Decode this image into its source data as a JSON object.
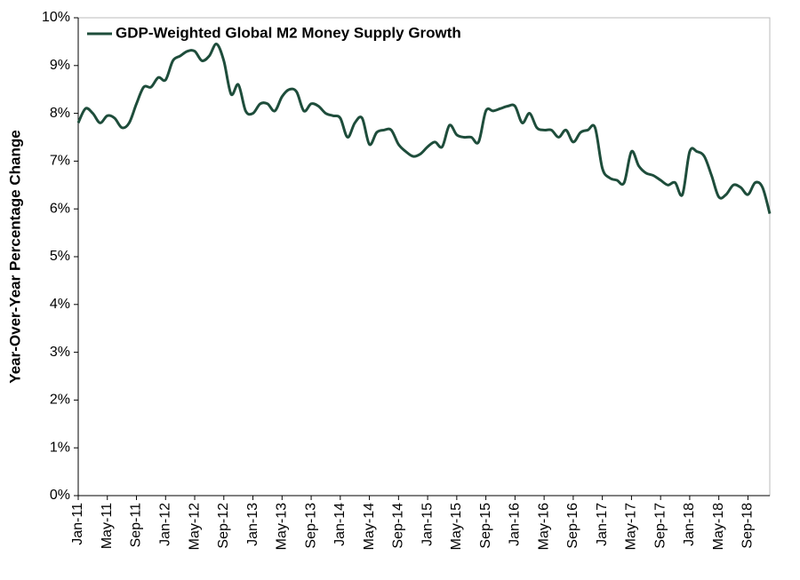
{
  "chart_data": {
    "type": "line",
    "y_label": "Year-Over-Year Percentage Change",
    "categories": [
      "Jan-11",
      null,
      null,
      null,
      "May-11",
      null,
      null,
      null,
      "Sep-11",
      null,
      null,
      null,
      "Jan-12",
      null,
      null,
      null,
      "May-12",
      null,
      null,
      null,
      "Sep-12",
      null,
      null,
      null,
      "Jan-13",
      null,
      null,
      null,
      "May-13",
      null,
      null,
      null,
      "Sep-13",
      null,
      null,
      null,
      "Jan-14",
      null,
      null,
      null,
      "May-14",
      null,
      null,
      null,
      "Sep-14",
      null,
      null,
      null,
      "Jan-15",
      null,
      null,
      null,
      "May-15",
      null,
      null,
      null,
      "Sep-15",
      null,
      null,
      null,
      "Jan-16",
      null,
      null,
      null,
      "May-16",
      null,
      null,
      null,
      "Sep-16",
      null,
      null,
      null,
      "Jan-17",
      null,
      null,
      null,
      "May-17",
      null,
      null,
      null,
      "Sep-17",
      null,
      null,
      null,
      "Jan-18",
      null,
      null,
      null,
      "May-18",
      null,
      null,
      null,
      "Sep-18",
      null,
      null,
      null
    ],
    "series": [
      {
        "name": "GDP-Weighted Global M2 Money Supply Growth",
        "color": "#1e4d3b",
        "values": [
          7.8,
          8.1,
          8.0,
          7.8,
          7.95,
          7.9,
          7.7,
          7.8,
          8.2,
          8.55,
          8.55,
          8.75,
          8.7,
          9.1,
          9.2,
          9.3,
          9.3,
          9.1,
          9.2,
          9.45,
          9.1,
          8.4,
          8.6,
          8.05,
          8.0,
          8.2,
          8.2,
          8.05,
          8.35,
          8.5,
          8.45,
          8.05,
          8.2,
          8.15,
          8.0,
          7.95,
          7.9,
          7.5,
          7.8,
          7.9,
          7.35,
          7.6,
          7.65,
          7.65,
          7.35,
          7.2,
          7.1,
          7.15,
          7.3,
          7.4,
          7.3,
          7.75,
          7.55,
          7.5,
          7.5,
          7.4,
          8.05,
          8.05,
          8.1,
          8.15,
          8.15,
          7.8,
          8.0,
          7.7,
          7.65,
          7.65,
          7.5,
          7.65,
          7.4,
          7.6,
          7.65,
          7.7,
          6.85,
          6.65,
          6.6,
          6.55,
          7.2,
          6.9,
          6.75,
          6.7,
          6.6,
          6.5,
          6.55,
          6.3,
          7.2,
          7.2,
          7.1,
          6.7,
          6.25,
          6.3,
          6.5,
          6.45,
          6.3,
          6.55,
          6.45,
          5.9
        ]
      }
    ],
    "ylim": [
      0,
      10
    ],
    "yticks": [
      {
        "value": 0,
        "label": "0%"
      },
      {
        "value": 1,
        "label": "1%"
      },
      {
        "value": 2,
        "label": "2%"
      },
      {
        "value": 3,
        "label": "3%"
      },
      {
        "value": 4,
        "label": "4%"
      },
      {
        "value": 5,
        "label": "5%"
      },
      {
        "value": 6,
        "label": "6%"
      },
      {
        "value": 7,
        "label": "7%"
      },
      {
        "value": 8,
        "label": "8%"
      },
      {
        "value": 9,
        "label": "9%"
      },
      {
        "value": 10,
        "label": "10%"
      }
    ],
    "grid": false,
    "legend": "top-left"
  }
}
